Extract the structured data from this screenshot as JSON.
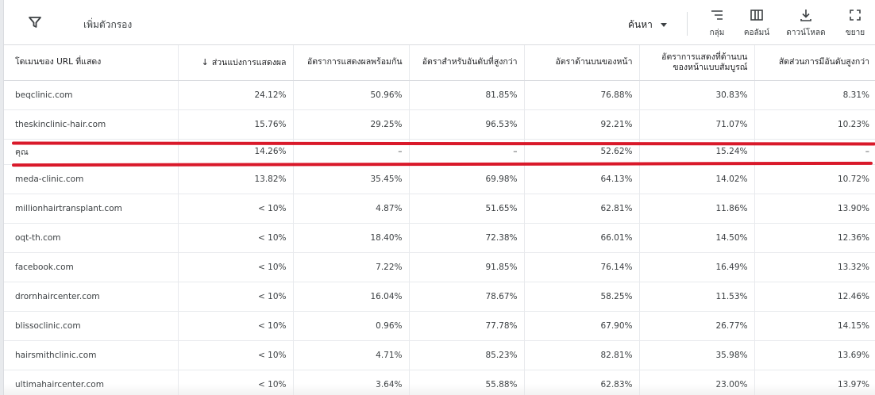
{
  "toolbar": {
    "add_filter": "เพิ่มตัวกรอง",
    "search": "ค้นหา",
    "group": "กลุ่ม",
    "columns": "คอลัมน์",
    "download": "ดาวน์โหลด",
    "expand": "ขยาย"
  },
  "table": {
    "headers": [
      "โดเมนของ URL ที่แสดง",
      "ส่วนแบ่งการแสดงผล",
      "อัตราการแสดงผลพร้อมกัน",
      "อัตราสำหรับอันดับที่สูงกว่า",
      "อัตราด้านบนของหน้า",
      "อัตราการแสดงที่ด้านบนของหน้าแบบสัมบูรณ์",
      "สัดส่วนการมีอันดับสูงกว่า"
    ],
    "sort_arrow": "↓",
    "rows": [
      [
        "beqclinic.com",
        "24.12%",
        "50.96%",
        "81.85%",
        "76.88%",
        "30.83%",
        "8.31%"
      ],
      [
        "theskinclinic-hair.com",
        "15.76%",
        "29.25%",
        "96.53%",
        "92.21%",
        "71.07%",
        "10.23%"
      ],
      [
        "คุณ",
        "14.26%",
        "–",
        "–",
        "52.62%",
        "15.24%",
        "–"
      ],
      [
        "meda-clinic.com",
        "13.82%",
        "35.45%",
        "69.98%",
        "64.13%",
        "14.02%",
        "10.72%"
      ],
      [
        "millionhairtransplant.com",
        "< 10%",
        "4.87%",
        "51.65%",
        "62.81%",
        "11.86%",
        "13.90%"
      ],
      [
        "oqt-th.com",
        "< 10%",
        "18.40%",
        "72.38%",
        "66.01%",
        "14.50%",
        "12.36%"
      ],
      [
        "facebook.com",
        "< 10%",
        "7.22%",
        "91.85%",
        "76.14%",
        "16.49%",
        "13.32%"
      ],
      [
        "drornhaircenter.com",
        "< 10%",
        "16.04%",
        "78.67%",
        "58.25%",
        "11.53%",
        "12.46%"
      ],
      [
        "blissoclinic.com",
        "< 10%",
        "0.96%",
        "77.78%",
        "67.90%",
        "26.77%",
        "14.15%"
      ],
      [
        "hairsmithclinic.com",
        "< 10%",
        "4.71%",
        "85.23%",
        "82.81%",
        "35.98%",
        "13.69%"
      ],
      [
        "ultimahaircenter.com",
        "< 10%",
        "3.64%",
        "55.88%",
        "62.83%",
        "23.00%",
        "13.97%"
      ]
    ]
  },
  "colors": {
    "highlight_line": "#d9192a",
    "border": "#dadce0"
  }
}
